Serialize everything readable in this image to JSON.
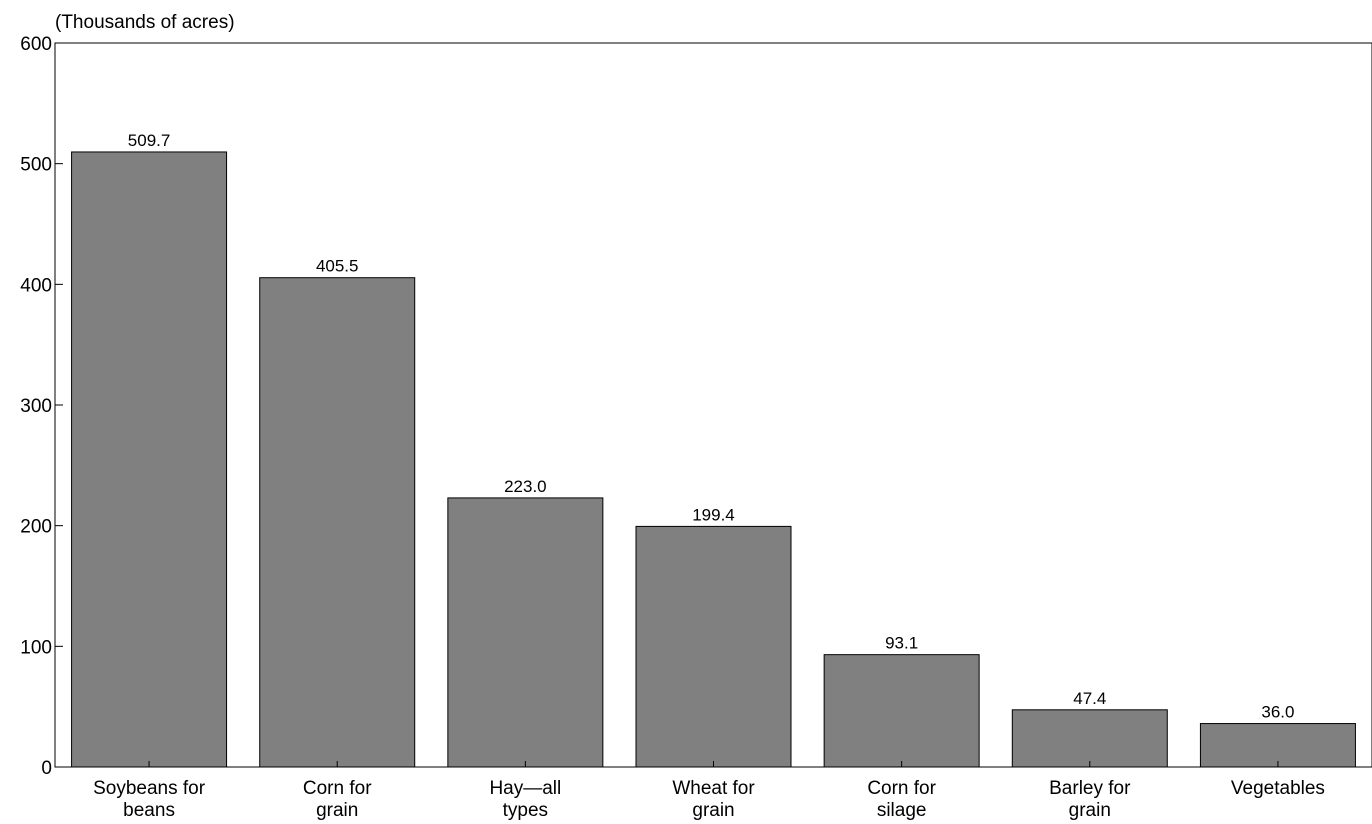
{
  "chart_data": {
    "type": "bar",
    "unit_label": "(Thousands of acres)",
    "categories": [
      [
        "Soybeans for",
        "beans"
      ],
      [
        "Corn for",
        "grain"
      ],
      [
        "Hay—all",
        "types"
      ],
      [
        "Wheat for",
        "grain"
      ],
      [
        "Corn for",
        "silage"
      ],
      [
        "Barley for",
        "grain"
      ],
      [
        "Vegetables"
      ]
    ],
    "values": [
      509.7,
      405.5,
      223.0,
      199.4,
      93.1,
      47.4,
      36.0
    ],
    "value_labels": [
      "509.7",
      "405.5",
      "223.0",
      "199.4",
      "93.1",
      "47.4",
      "36.0"
    ],
    "ylim": [
      0,
      600
    ],
    "yticks": [
      0,
      100,
      200,
      300,
      400,
      500,
      600
    ],
    "grid": false,
    "bar_color": "#808080",
    "bar_edge_color": "#000000"
  }
}
